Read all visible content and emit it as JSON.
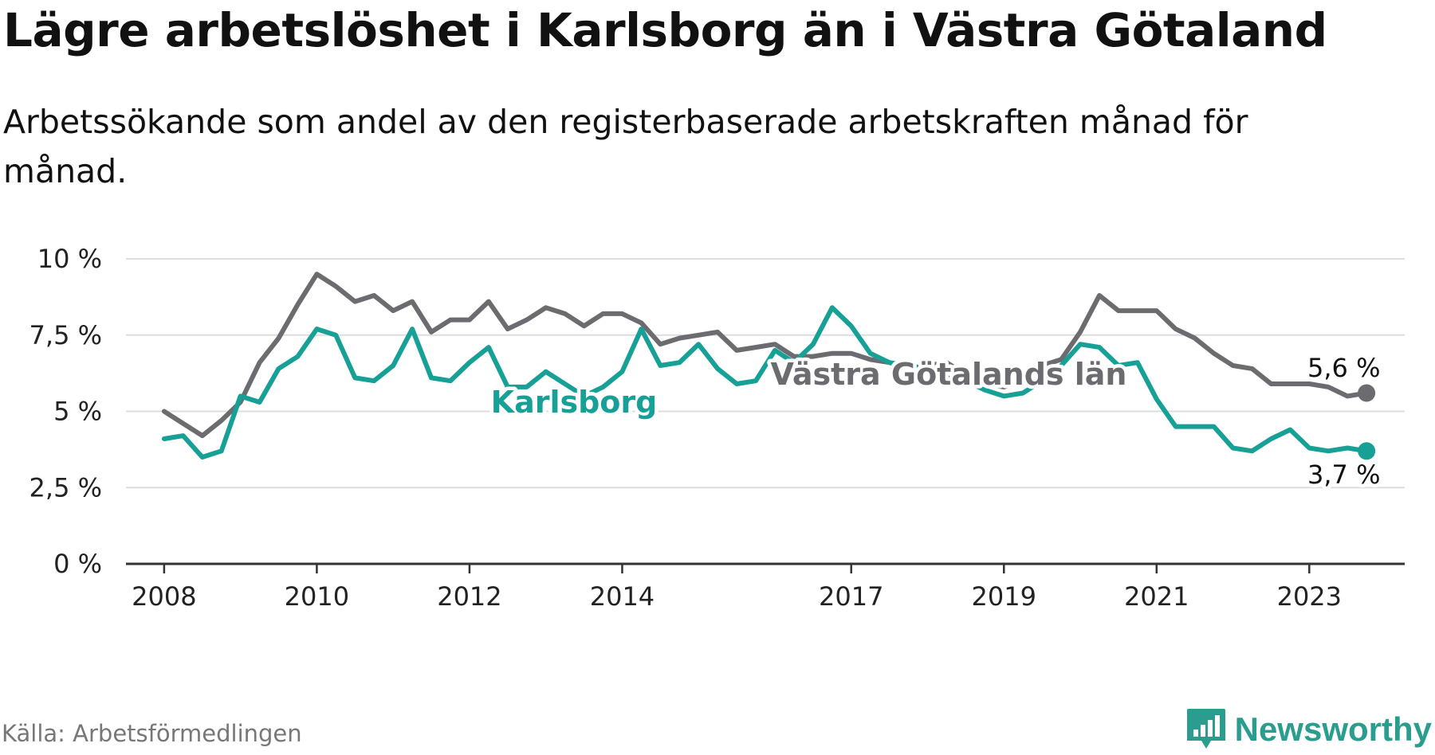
{
  "title": "Lägre arbetslöshet i Karlsborg än i Västra Götaland",
  "subtitle": "Arbetssökande som andel av den registerbaserade arbetskraften månad för månad.",
  "source": "Källa: Arbetsförmedlingen",
  "brand": "Newsworthy",
  "colors": {
    "karlsborg": "#16a096",
    "vastra": "#6b6b70",
    "grid": "#dddddd",
    "axis": "#333333",
    "brand": "#2a9d8f"
  },
  "chart_data": {
    "type": "line",
    "title": "Lägre arbetslöshet i Karlsborg än i Västra Götaland",
    "xlabel": "",
    "ylabel": "",
    "ylim": [
      0,
      10
    ],
    "xlim": [
      2007.5,
      2024.25
    ],
    "grid": true,
    "y_ticks": [
      0,
      2.5,
      5,
      7.5,
      10
    ],
    "y_tick_labels": [
      "0 %",
      "2,5 %",
      "5 %",
      "7,5 %",
      "10 %"
    ],
    "x_ticks": [
      2008,
      2010,
      2012,
      2014,
      2017,
      2019,
      2021,
      2023
    ],
    "x_tick_labels": [
      "2008",
      "2010",
      "2012",
      "2014",
      "2017",
      "2019",
      "2021",
      "2023"
    ],
    "series": [
      {
        "name": "Västra Götalands län",
        "label": "Västra Götalands län",
        "end_label": "5,6 %",
        "x": [
          2008.0,
          2008.25,
          2008.5,
          2008.75,
          2009.0,
          2009.25,
          2009.5,
          2009.75,
          2010.0,
          2010.25,
          2010.5,
          2010.75,
          2011.0,
          2011.25,
          2011.5,
          2011.75,
          2012.0,
          2012.25,
          2012.5,
          2012.75,
          2013.0,
          2013.25,
          2013.5,
          2013.75,
          2014.0,
          2014.25,
          2014.5,
          2014.75,
          2015.0,
          2015.25,
          2015.5,
          2015.75,
          2016.0,
          2016.25,
          2016.5,
          2016.75,
          2017.0,
          2017.25,
          2017.5,
          2017.75,
          2018.0,
          2018.25,
          2018.5,
          2018.75,
          2019.0,
          2019.25,
          2019.5,
          2019.75,
          2020.0,
          2020.25,
          2020.5,
          2020.75,
          2021.0,
          2021.25,
          2021.5,
          2021.75,
          2022.0,
          2022.25,
          2022.5,
          2022.75,
          2023.0,
          2023.25,
          2023.5,
          2023.75
        ],
        "values": [
          5.0,
          4.6,
          4.2,
          4.7,
          5.3,
          6.6,
          7.4,
          8.5,
          9.5,
          9.1,
          8.6,
          8.8,
          8.3,
          8.6,
          7.6,
          8.0,
          8.0,
          8.6,
          7.7,
          8.0,
          8.4,
          8.2,
          7.8,
          8.2,
          8.2,
          7.9,
          7.2,
          7.4,
          7.5,
          7.6,
          7.0,
          7.1,
          7.2,
          6.8,
          6.8,
          6.9,
          6.9,
          6.7,
          6.6,
          6.4,
          6.5,
          6.6,
          6.2,
          5.9,
          5.8,
          6.0,
          6.5,
          6.7,
          7.6,
          8.8,
          8.3,
          8.3,
          8.3,
          7.7,
          7.4,
          6.9,
          6.5,
          6.4,
          5.9,
          5.9,
          5.9,
          5.8,
          5.5,
          5.6
        ]
      },
      {
        "name": "Karlsborg",
        "label": "Karlsborg",
        "end_label": "3,7 %",
        "x": [
          2008.0,
          2008.25,
          2008.5,
          2008.75,
          2009.0,
          2009.25,
          2009.5,
          2009.75,
          2010.0,
          2010.25,
          2010.5,
          2010.75,
          2011.0,
          2011.25,
          2011.5,
          2011.75,
          2012.0,
          2012.25,
          2012.5,
          2012.75,
          2013.0,
          2013.25,
          2013.5,
          2013.75,
          2014.0,
          2014.25,
          2014.5,
          2014.75,
          2015.0,
          2015.25,
          2015.5,
          2015.75,
          2016.0,
          2016.25,
          2016.5,
          2016.75,
          2017.0,
          2017.25,
          2017.5,
          2017.75,
          2018.0,
          2018.25,
          2018.5,
          2018.75,
          2019.0,
          2019.25,
          2019.5,
          2019.75,
          2020.0,
          2020.25,
          2020.5,
          2020.75,
          2021.0,
          2021.25,
          2021.5,
          2021.75,
          2022.0,
          2022.25,
          2022.5,
          2022.75,
          2023.0,
          2023.25,
          2023.5,
          2023.75
        ],
        "values": [
          4.1,
          4.2,
          3.5,
          3.7,
          5.5,
          5.3,
          6.4,
          6.8,
          7.7,
          7.5,
          6.1,
          6.0,
          6.5,
          7.7,
          6.1,
          6.0,
          6.6,
          7.1,
          5.8,
          5.8,
          6.3,
          5.9,
          5.5,
          5.8,
          6.3,
          7.7,
          6.5,
          6.6,
          7.2,
          6.4,
          5.9,
          6.0,
          7.0,
          6.6,
          7.2,
          8.4,
          7.8,
          6.9,
          6.6,
          6.5,
          6.4,
          6.1,
          6.0,
          5.7,
          5.5,
          5.6,
          6.0,
          6.5,
          7.2,
          7.1,
          6.5,
          6.6,
          5.4,
          4.5,
          4.5,
          4.5,
          3.8,
          3.7,
          4.1,
          4.4,
          3.8,
          3.7,
          3.8,
          3.7
        ]
      }
    ]
  }
}
